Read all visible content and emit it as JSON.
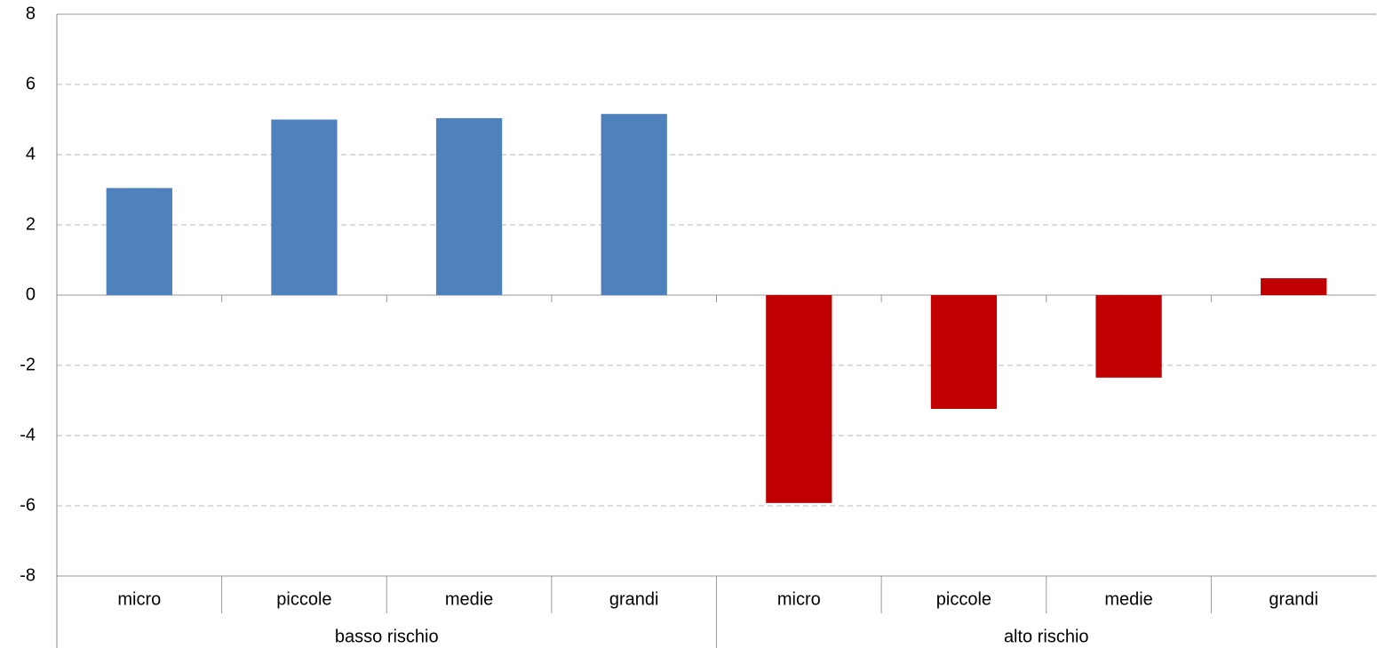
{
  "chart_data": {
    "type": "bar",
    "groups": [
      {
        "label": "basso rischio",
        "color": "#4f81bd",
        "categories": [
          "micro",
          "piccole",
          "medie",
          "grandi"
        ],
        "values": [
          3.05,
          5.0,
          5.04,
          5.16
        ]
      },
      {
        "label": "alto rischio",
        "color": "#c00000",
        "categories": [
          "micro",
          "piccole",
          "medie",
          "grandi"
        ],
        "values": [
          -5.92,
          -3.24,
          -2.35,
          0.48
        ]
      }
    ],
    "ylim": [
      -8,
      8
    ],
    "yticks": [
      -8,
      -6,
      -4,
      -2,
      0,
      2,
      4,
      6,
      8
    ],
    "grid": true
  }
}
